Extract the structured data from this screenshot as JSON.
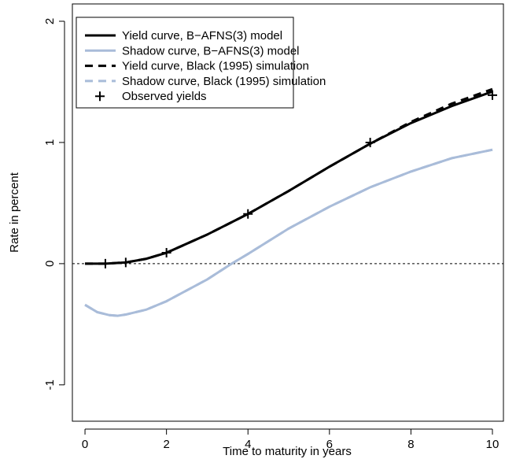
{
  "chart_data": {
    "type": "line",
    "xlabel": "Time to maturity in years",
    "ylabel": "Rate in percent",
    "xlim": [
      -0.31,
      10.27
    ],
    "ylim": [
      -1.3,
      2.143
    ],
    "xticks": [
      0,
      2,
      4,
      6,
      8,
      10
    ],
    "yticks": [
      -1,
      0,
      1,
      2
    ],
    "hline": 0,
    "legend": "top-left",
    "series": [
      {
        "name": "Yield curve, B−AFNS(3) model",
        "color": "#000000",
        "dash": false,
        "x": [
          0,
          0.5,
          1,
          1.5,
          2,
          3,
          4,
          5,
          6,
          7,
          8,
          9,
          10
        ],
        "values": [
          0,
          0,
          0.01,
          0.04,
          0.09,
          0.24,
          0.41,
          0.6,
          0.8,
          0.99,
          1.16,
          1.3,
          1.42
        ]
      },
      {
        "name": "Shadow curve, B−AFNS(3) model",
        "color": "#a9bcd9",
        "dash": false,
        "x": [
          0,
          0.3,
          0.6,
          0.8,
          1,
          1.5,
          2,
          3,
          3.6,
          4,
          5,
          6,
          7,
          8,
          9,
          10
        ],
        "values": [
          -0.34,
          -0.4,
          -0.425,
          -0.43,
          -0.42,
          -0.38,
          -0.31,
          -0.13,
          0,
          0.08,
          0.29,
          0.47,
          0.63,
          0.76,
          0.87,
          0.94
        ]
      },
      {
        "name": "Yield curve, Black (1995) simulation",
        "color": "#000000",
        "dash": true,
        "x": [
          0,
          0.5,
          1,
          1.5,
          2,
          3,
          4,
          5,
          6,
          7,
          8,
          9,
          10
        ],
        "values": [
          0,
          0,
          0.01,
          0.04,
          0.09,
          0.24,
          0.41,
          0.6,
          0.8,
          0.99,
          1.17,
          1.32,
          1.44
        ]
      },
      {
        "name": "Shadow curve, Black (1995) simulation",
        "color": "#a9bcd9",
        "dash": true,
        "x": [
          0,
          0.3,
          0.6,
          0.8,
          1,
          1.5,
          2,
          3,
          3.6,
          4,
          5,
          6,
          7,
          8,
          9,
          10
        ],
        "values": [
          -0.34,
          -0.4,
          -0.425,
          -0.43,
          -0.42,
          -0.38,
          -0.31,
          -0.13,
          0,
          0.08,
          0.29,
          0.47,
          0.63,
          0.76,
          0.87,
          0.94
        ]
      },
      {
        "name": "Observed yields",
        "color": "#000000",
        "marker": "+",
        "x": [
          0.5,
          1,
          2,
          4,
          7,
          10
        ],
        "values": [
          0,
          0.01,
          0.09,
          0.41,
          1,
          1.39
        ]
      }
    ]
  }
}
